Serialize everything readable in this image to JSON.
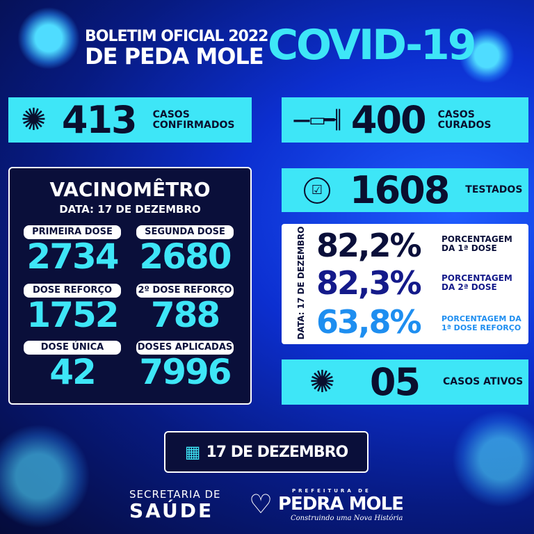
{
  "header": {
    "line1": "BOLETIM OFICIAL 2022",
    "line2": "DE PEDA MOLE",
    "covid": "COVID-19"
  },
  "confirmados": {
    "value": "413",
    "label1": "CASOS",
    "label2": "CONFIRMADOS",
    "icon": "virus-icon"
  },
  "curados": {
    "value": "400",
    "label1": "CASOS",
    "label2": "CURADOS",
    "icon": "syringe-icon"
  },
  "testados": {
    "value": "1608",
    "label": "TESTADOS",
    "icon": "clipboard-icon"
  },
  "vacinometro": {
    "title": "VACINOMÊTRO",
    "date": "DATA: 17 DE DEZEMBRO",
    "items": [
      {
        "label": "PRIMEIRA DOSE",
        "value": "2734"
      },
      {
        "label": "SEGUNDA DOSE",
        "value": "2680"
      },
      {
        "label": "DOSE REFORÇO",
        "value": "1752"
      },
      {
        "label": "2º DOSE REFORÇO",
        "value": "788"
      },
      {
        "label": "DOSE ÚNICA",
        "value": "42"
      },
      {
        "label": "DOSES APLICADAS",
        "value": "7996"
      }
    ]
  },
  "percentuais": {
    "date": "DATA: 17 DE DEZEMBRO",
    "items": [
      {
        "value": "82,2%",
        "l1": "PORCENTAGEM",
        "l2": "DA 1ª DOSE",
        "color": "#0a0f3a"
      },
      {
        "value": "82,3%",
        "l1": "PORCENTAGEM",
        "l2": "DA 2ª DOSE",
        "color": "#141a8a"
      },
      {
        "value": "63,8%",
        "l1": "PORCENTAGEM DA",
        "l2": "1ª DOSE REFORÇO",
        "color": "#1e8ef0"
      }
    ]
  },
  "ativos": {
    "value": "05",
    "label": "CASOS ATIVOS",
    "icon": "virus-icon"
  },
  "date_badge": {
    "text": "17 DE DEZEMBRO",
    "icon": "calendar-icon"
  },
  "footer": {
    "sec1": "SECRETARIA DE",
    "sec2": "SAÚDE",
    "pref_small": "PREFEITURA DE",
    "pref_big": "PEDRA MOLE",
    "slogan": "Construindo uma Nova História"
  },
  "colors": {
    "accent": "#3ee6f7",
    "navy": "#0a0f3a"
  }
}
